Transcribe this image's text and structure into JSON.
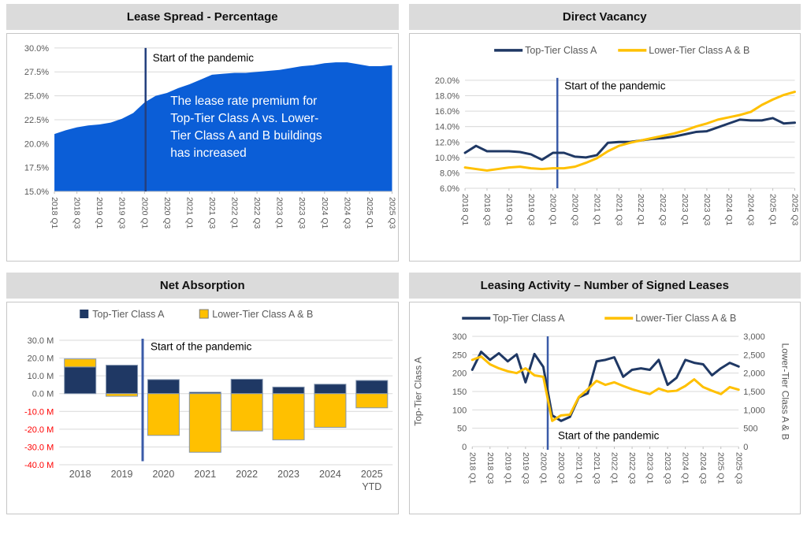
{
  "pandemic_label": "Start of the pandemic",
  "series_names": {
    "top": "Top-Tier Class A",
    "lower": "Lower-Tier Class A & B"
  },
  "quarter_labels": [
    "2018 Q1",
    "2018 Q3",
    "2019 Q1",
    "2019 Q3",
    "2020 Q1",
    "2020 Q3",
    "2021 Q1",
    "2021 Q3",
    "2022 Q1",
    "2022 Q3",
    "2023 Q1",
    "2023 Q3",
    "2024 Q1",
    "2024 Q3",
    "2025 Q1",
    "2025 Q3"
  ],
  "colors": {
    "navy": "#1F3864",
    "gold": "#FFC000",
    "area_blue": "#0B5ED7",
    "grid": "#D9D9D9",
    "axis_line": "#BFBFBF",
    "axis_text": "#595959",
    "negative_text": "#FF0000",
    "vline_dark": "#24407E",
    "vline_royal": "#3A5BA8",
    "bar_outline": "#8496B0",
    "title_bg": "#DBDBDB",
    "panel_border": "#C6C6C6",
    "legend_text": "#595959",
    "annotation_text": "#000000",
    "callout_text": "#FFFFFF"
  },
  "chart_data": [
    {
      "type": "area",
      "title": "Lease Spread - Percentage",
      "ylim": [
        15,
        30
      ],
      "ytick_vals": [
        30,
        27.5,
        25,
        22.5,
        20,
        17.5,
        15
      ],
      "ytick_labels": [
        "30.0%",
        "27.5%",
        "25.0%",
        "22.5%",
        "20.0%",
        "17.5%",
        "15.0%"
      ],
      "x_points": 31,
      "pandemic_index": 8.1,
      "values": [
        21.0,
        21.4,
        21.7,
        21.9,
        22.0,
        22.2,
        22.6,
        23.2,
        24.3,
        25.0,
        25.3,
        25.8,
        26.2,
        26.7,
        27.2,
        27.3,
        27.4,
        27.4,
        27.5,
        27.6,
        27.7,
        27.9,
        28.1,
        28.2,
        28.4,
        28.5,
        28.5,
        28.3,
        28.1,
        28.1,
        28.2
      ],
      "callout": [
        "The lease rate premium for",
        "Top-Tier Class A vs. Lower-",
        "Tier Class A and B buildings",
        "has increased"
      ]
    },
    {
      "type": "line",
      "title": "Direct Vacancy",
      "ylim": [
        6,
        20
      ],
      "ytick_vals": [
        20,
        18,
        16,
        14,
        12,
        10,
        8,
        6
      ],
      "ytick_labels": [
        "20.0%",
        "18.0%",
        "16.0%",
        "14.0%",
        "12.0%",
        "10.0%",
        "8.0%",
        "6.0%"
      ],
      "x_points": 31,
      "pandemic_index": 8.4,
      "series": [
        {
          "name": "Top-Tier Class A",
          "values": [
            10.6,
            11.5,
            10.8,
            10.8,
            10.8,
            10.7,
            10.4,
            9.7,
            10.6,
            10.6,
            10.1,
            10.0,
            10.3,
            11.9,
            12.0,
            12.0,
            12.2,
            12.4,
            12.5,
            12.7,
            13.0,
            13.3,
            13.4,
            13.9,
            14.4,
            14.9,
            14.8,
            14.8,
            15.1,
            14.4,
            14.5
          ]
        },
        {
          "name": "Lower-Tier Class A & B",
          "values": [
            8.7,
            8.5,
            8.3,
            8.5,
            8.7,
            8.8,
            8.6,
            8.5,
            8.6,
            8.6,
            8.8,
            9.3,
            9.9,
            10.8,
            11.5,
            11.9,
            12.2,
            12.5,
            12.8,
            13.1,
            13.5,
            14.0,
            14.4,
            14.9,
            15.2,
            15.5,
            15.9,
            16.8,
            17.5,
            18.1,
            18.5
          ]
        }
      ]
    },
    {
      "type": "stacked-bar",
      "title": "Net Absorption",
      "ylim": [
        -40,
        30
      ],
      "ytick_vals": [
        30,
        20,
        10,
        0,
        -10,
        -20,
        -30,
        -40
      ],
      "ytick_labels": [
        "30.0 M",
        "20.0 M",
        "10.0 M",
        "0.0 M",
        "-10.0 M",
        "-20.0 M",
        "-30.0 M",
        "-40.0 M"
      ],
      "categories": [
        "2018",
        "2019",
        "2020",
        "2021",
        "2022",
        "2023",
        "2024",
        "2025 YTD"
      ],
      "pandemic_boundary_after": "2019",
      "series": [
        {
          "name": "Top-Tier Class A",
          "values": [
            15.0,
            16.0,
            7.9,
            0.8,
            8.1,
            3.7,
            5.3,
            7.4
          ]
        },
        {
          "name": "Lower-Tier Class A & B",
          "values": [
            4.5,
            -1.5,
            -23.5,
            -33.0,
            -21.0,
            -26.0,
            -19.0,
            -8.0
          ]
        }
      ]
    },
    {
      "type": "dual-line",
      "title": "Leasing Activity – Number of Signed Leases",
      "ylabel_left": "Top-Tier Class A",
      "ylabel_right": "Lower-Tier Class A & B",
      "ylim_left": [
        0,
        300
      ],
      "ytick_labels_left": [
        "300",
        "250",
        "200",
        "150",
        "100",
        "50",
        "0"
      ],
      "ylim_right": [
        0,
        3000
      ],
      "ytick_labels_right": [
        "3,000",
        "2,500",
        "2,000",
        "1,500",
        "1,000",
        "500",
        "0"
      ],
      "x_points": 31,
      "pandemic_index": 8.5,
      "series": [
        {
          "name": "Top-Tier Class A",
          "axis": "left",
          "values": [
            209,
            258,
            236,
            254,
            232,
            251,
            175,
            252,
            217,
            85,
            70,
            81,
            134,
            145,
            232,
            236,
            243,
            190,
            209,
            213,
            209,
            236,
            168,
            187,
            236,
            228,
            224,
            194,
            213,
            228,
            218
          ]
        },
        {
          "name": "Lower-Tier Class A & B",
          "axis": "right",
          "values": [
            2360,
            2450,
            2240,
            2130,
            2050,
            2000,
            2130,
            1940,
            1900,
            700,
            850,
            870,
            1350,
            1560,
            1790,
            1680,
            1750,
            1650,
            1560,
            1490,
            1430,
            1580,
            1500,
            1520,
            1650,
            1830,
            1620,
            1520,
            1430,
            1620,
            1550
          ]
        }
      ]
    }
  ]
}
